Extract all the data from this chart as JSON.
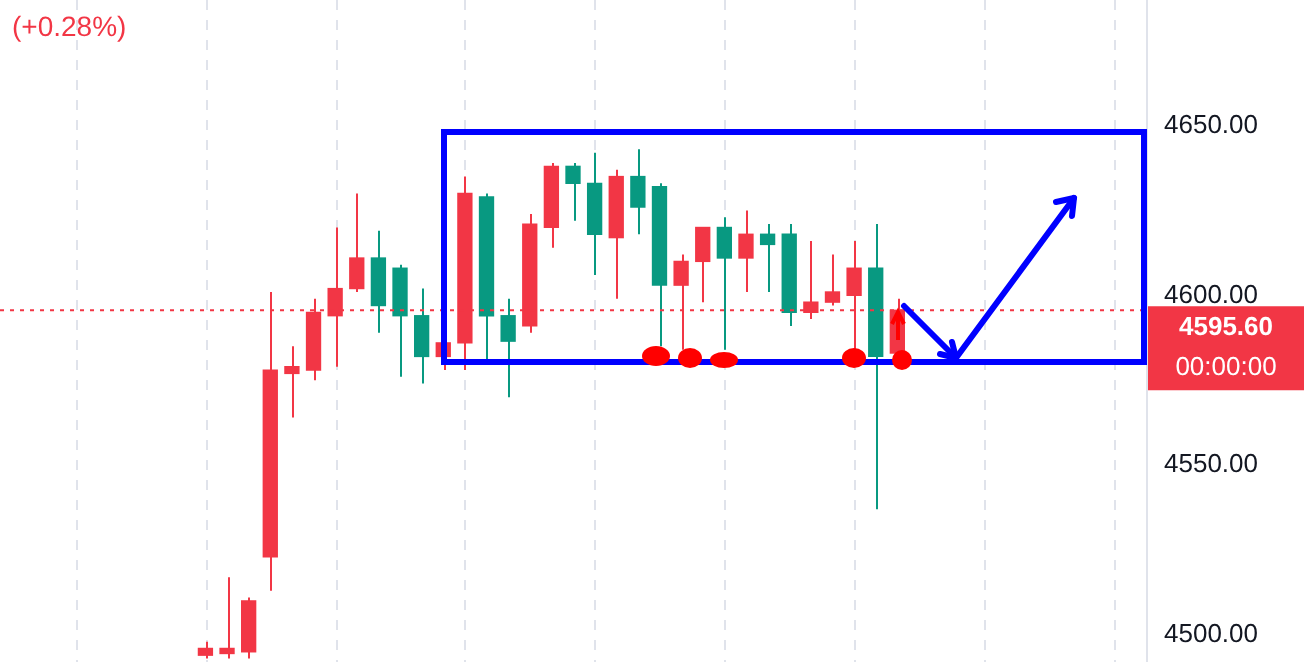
{
  "chart_data": {
    "type": "candlestick",
    "categories": [
      null,
      null,
      null,
      null,
      null,
      null,
      null,
      null,
      null,
      null,
      null,
      null,
      null,
      null,
      null,
      null,
      null,
      null,
      null,
      null,
      null,
      null,
      null,
      null,
      null,
      null,
      null,
      null,
      null,
      null,
      null,
      null,
      null,
      null,
      null,
      null,
      null,
      null,
      null,
      null,
      null,
      null,
      null,
      null,
      null,
      null,
      null,
      null,
      null,
      null,
      null,
      null,
      null
    ],
    "ohlc": [
      null,
      null,
      null,
      null,
      null,
      null,
      null,
      null,
      null,
      [
        4494,
        4498,
        4493,
        4496
      ],
      [
        4494.5,
        4517,
        4493,
        4496
      ],
      [
        4495,
        4511,
        4493,
        4510
      ],
      [
        4523,
        4601,
        4513,
        4578
      ],
      [
        4577,
        4585,
        4564,
        4579
      ],
      [
        4578,
        4599,
        4575,
        4595
      ],
      [
        4594,
        4620,
        4579,
        4602
      ],
      [
        4602,
        4630,
        4601,
        4611
      ],
      [
        4611,
        4619,
        4589,
        4597
      ],
      [
        4608,
        4609,
        4576,
        4594
      ],
      [
        4594,
        4602,
        4574,
        4582
      ],
      [
        4582,
        4586,
        4578,
        4586
      ],
      [
        4586,
        4635,
        4578,
        4630
      ],
      [
        4629,
        4630,
        4581,
        4594
      ],
      [
        4594,
        4599,
        4570,
        4586.5
      ],
      [
        4591,
        4624,
        4589,
        4621
      ],
      [
        4620,
        4639,
        4614,
        4638
      ],
      [
        4638,
        4639,
        4622,
        4633
      ],
      [
        4633,
        4642,
        4606,
        4618
      ],
      [
        4617,
        4637,
        4599,
        4635
      ],
      [
        4635,
        4643,
        4618,
        4626
      ],
      [
        4632,
        4633,
        4585,
        4603
      ],
      [
        4603,
        4612,
        4584,
        4610
      ],
      [
        4610,
        4620,
        4598,
        4620
      ],
      [
        4620,
        4623,
        4584,
        4611
      ],
      [
        4611,
        4625,
        4601,
        4618
      ],
      [
        4618,
        4621,
        4601,
        4615
      ],
      [
        4618,
        4621,
        4591,
        4595
      ],
      [
        4595,
        4616,
        4593,
        4598
      ],
      [
        4598,
        4612,
        4597,
        4601
      ],
      [
        4600,
        4616,
        4584,
        4608
      ],
      [
        4608,
        4621,
        4537,
        4582
      ],
      [
        4583,
        4599,
        4583,
        4595.6
      ],
      null,
      null,
      null,
      null,
      null,
      null,
      null,
      null,
      null,
      null,
      null
    ],
    "colors": [
      null,
      null,
      null,
      null,
      null,
      null,
      null,
      null,
      null,
      "#f23645",
      "#f23645",
      "#f23645",
      "#f23645",
      "#f23645",
      "#f23645",
      "#f23645",
      "#f23645",
      "#089981",
      "#089981",
      "#089981",
      "#f23645",
      "#f23645",
      "#089981",
      "#089981",
      "#f23645",
      "#f23645",
      "#089981",
      "#089981",
      "#f23645",
      "#089981",
      "#089981",
      "#f23645",
      "#f23645",
      "#089981",
      "#f23645",
      "#089981",
      "#089981",
      "#f23645",
      "#f23645",
      "#f23645",
      "#089981",
      "#f23645",
      null,
      null,
      null,
      null,
      null,
      null,
      null,
      null,
      null,
      null,
      null
    ],
    "ylim": [
      4492,
      4687
    ],
    "yticks": [
      {
        "value": 4500,
        "label": "4500.00"
      },
      {
        "value": 4550,
        "label": "4550.00"
      },
      {
        "value": 4600,
        "label": "4600.00"
      },
      {
        "value": 4650,
        "label": "4650.00"
      }
    ],
    "tick_labels": "y",
    "grid": "x",
    "ref_lines": [
      {
        "axis": "y",
        "value": 4595.6,
        "label": "4595.60",
        "color": "#f23645",
        "line_style": "dotted"
      }
    ],
    "annotations": [
      "(+0.28%)",
      "00:00:00"
    ]
  }
}
